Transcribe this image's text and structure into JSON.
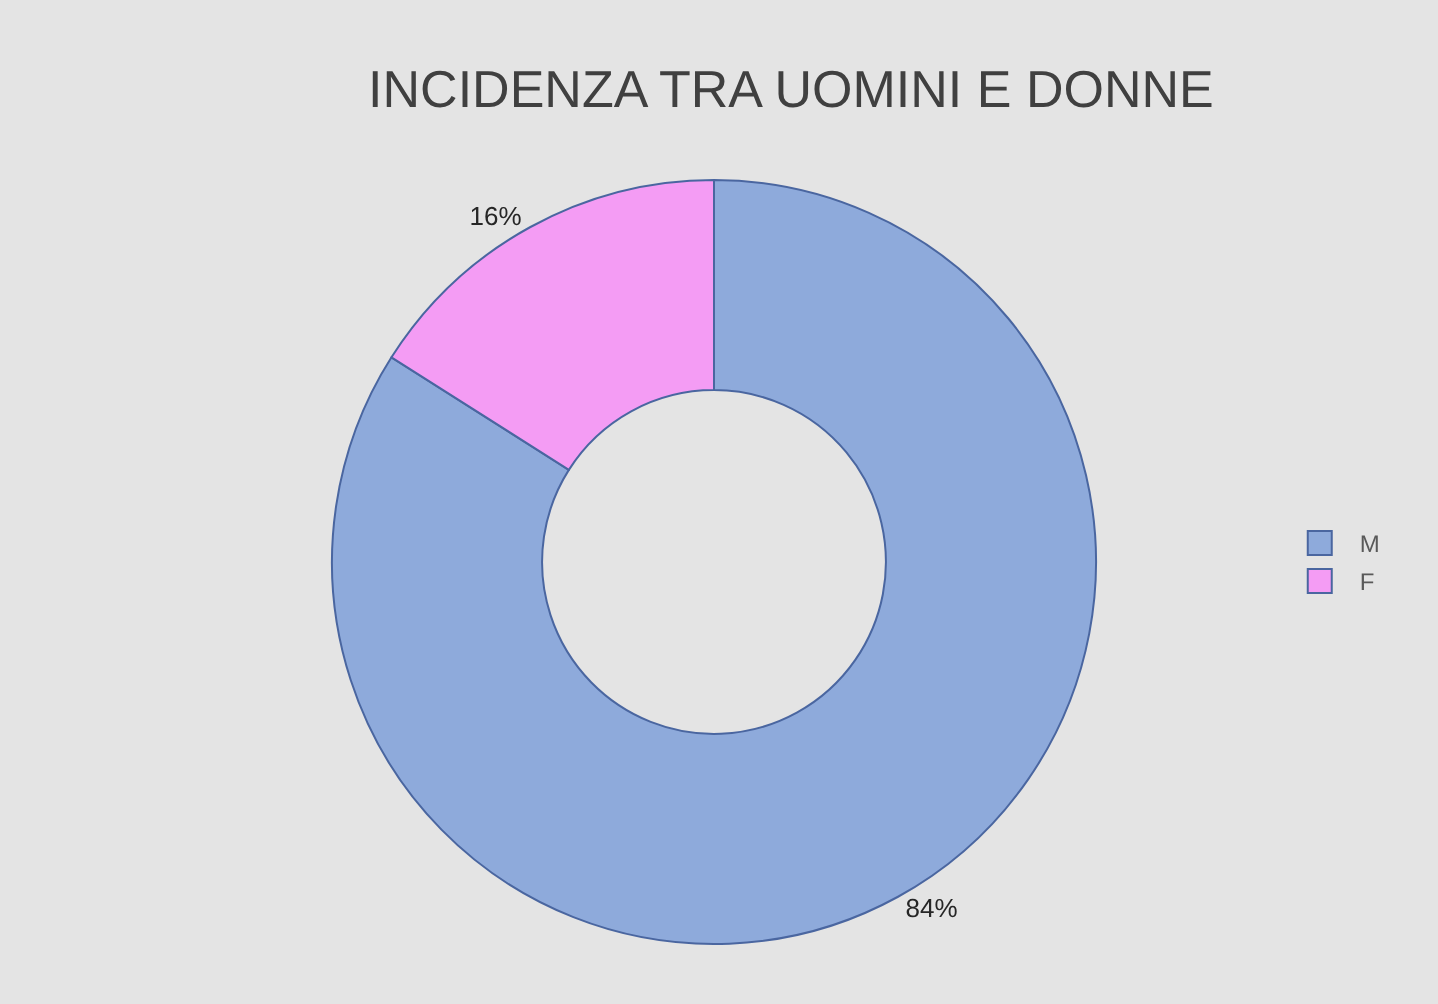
{
  "chart_data": {
    "type": "donut",
    "title": "INCIDENZA TRA UOMINI E DONNE",
    "categories": [
      "M",
      "F"
    ],
    "values": [
      84,
      16
    ],
    "colors": [
      "#8eaadb",
      "#f49cf4"
    ],
    "value_labels": [
      "84%",
      "16%"
    ],
    "legend": "right"
  }
}
